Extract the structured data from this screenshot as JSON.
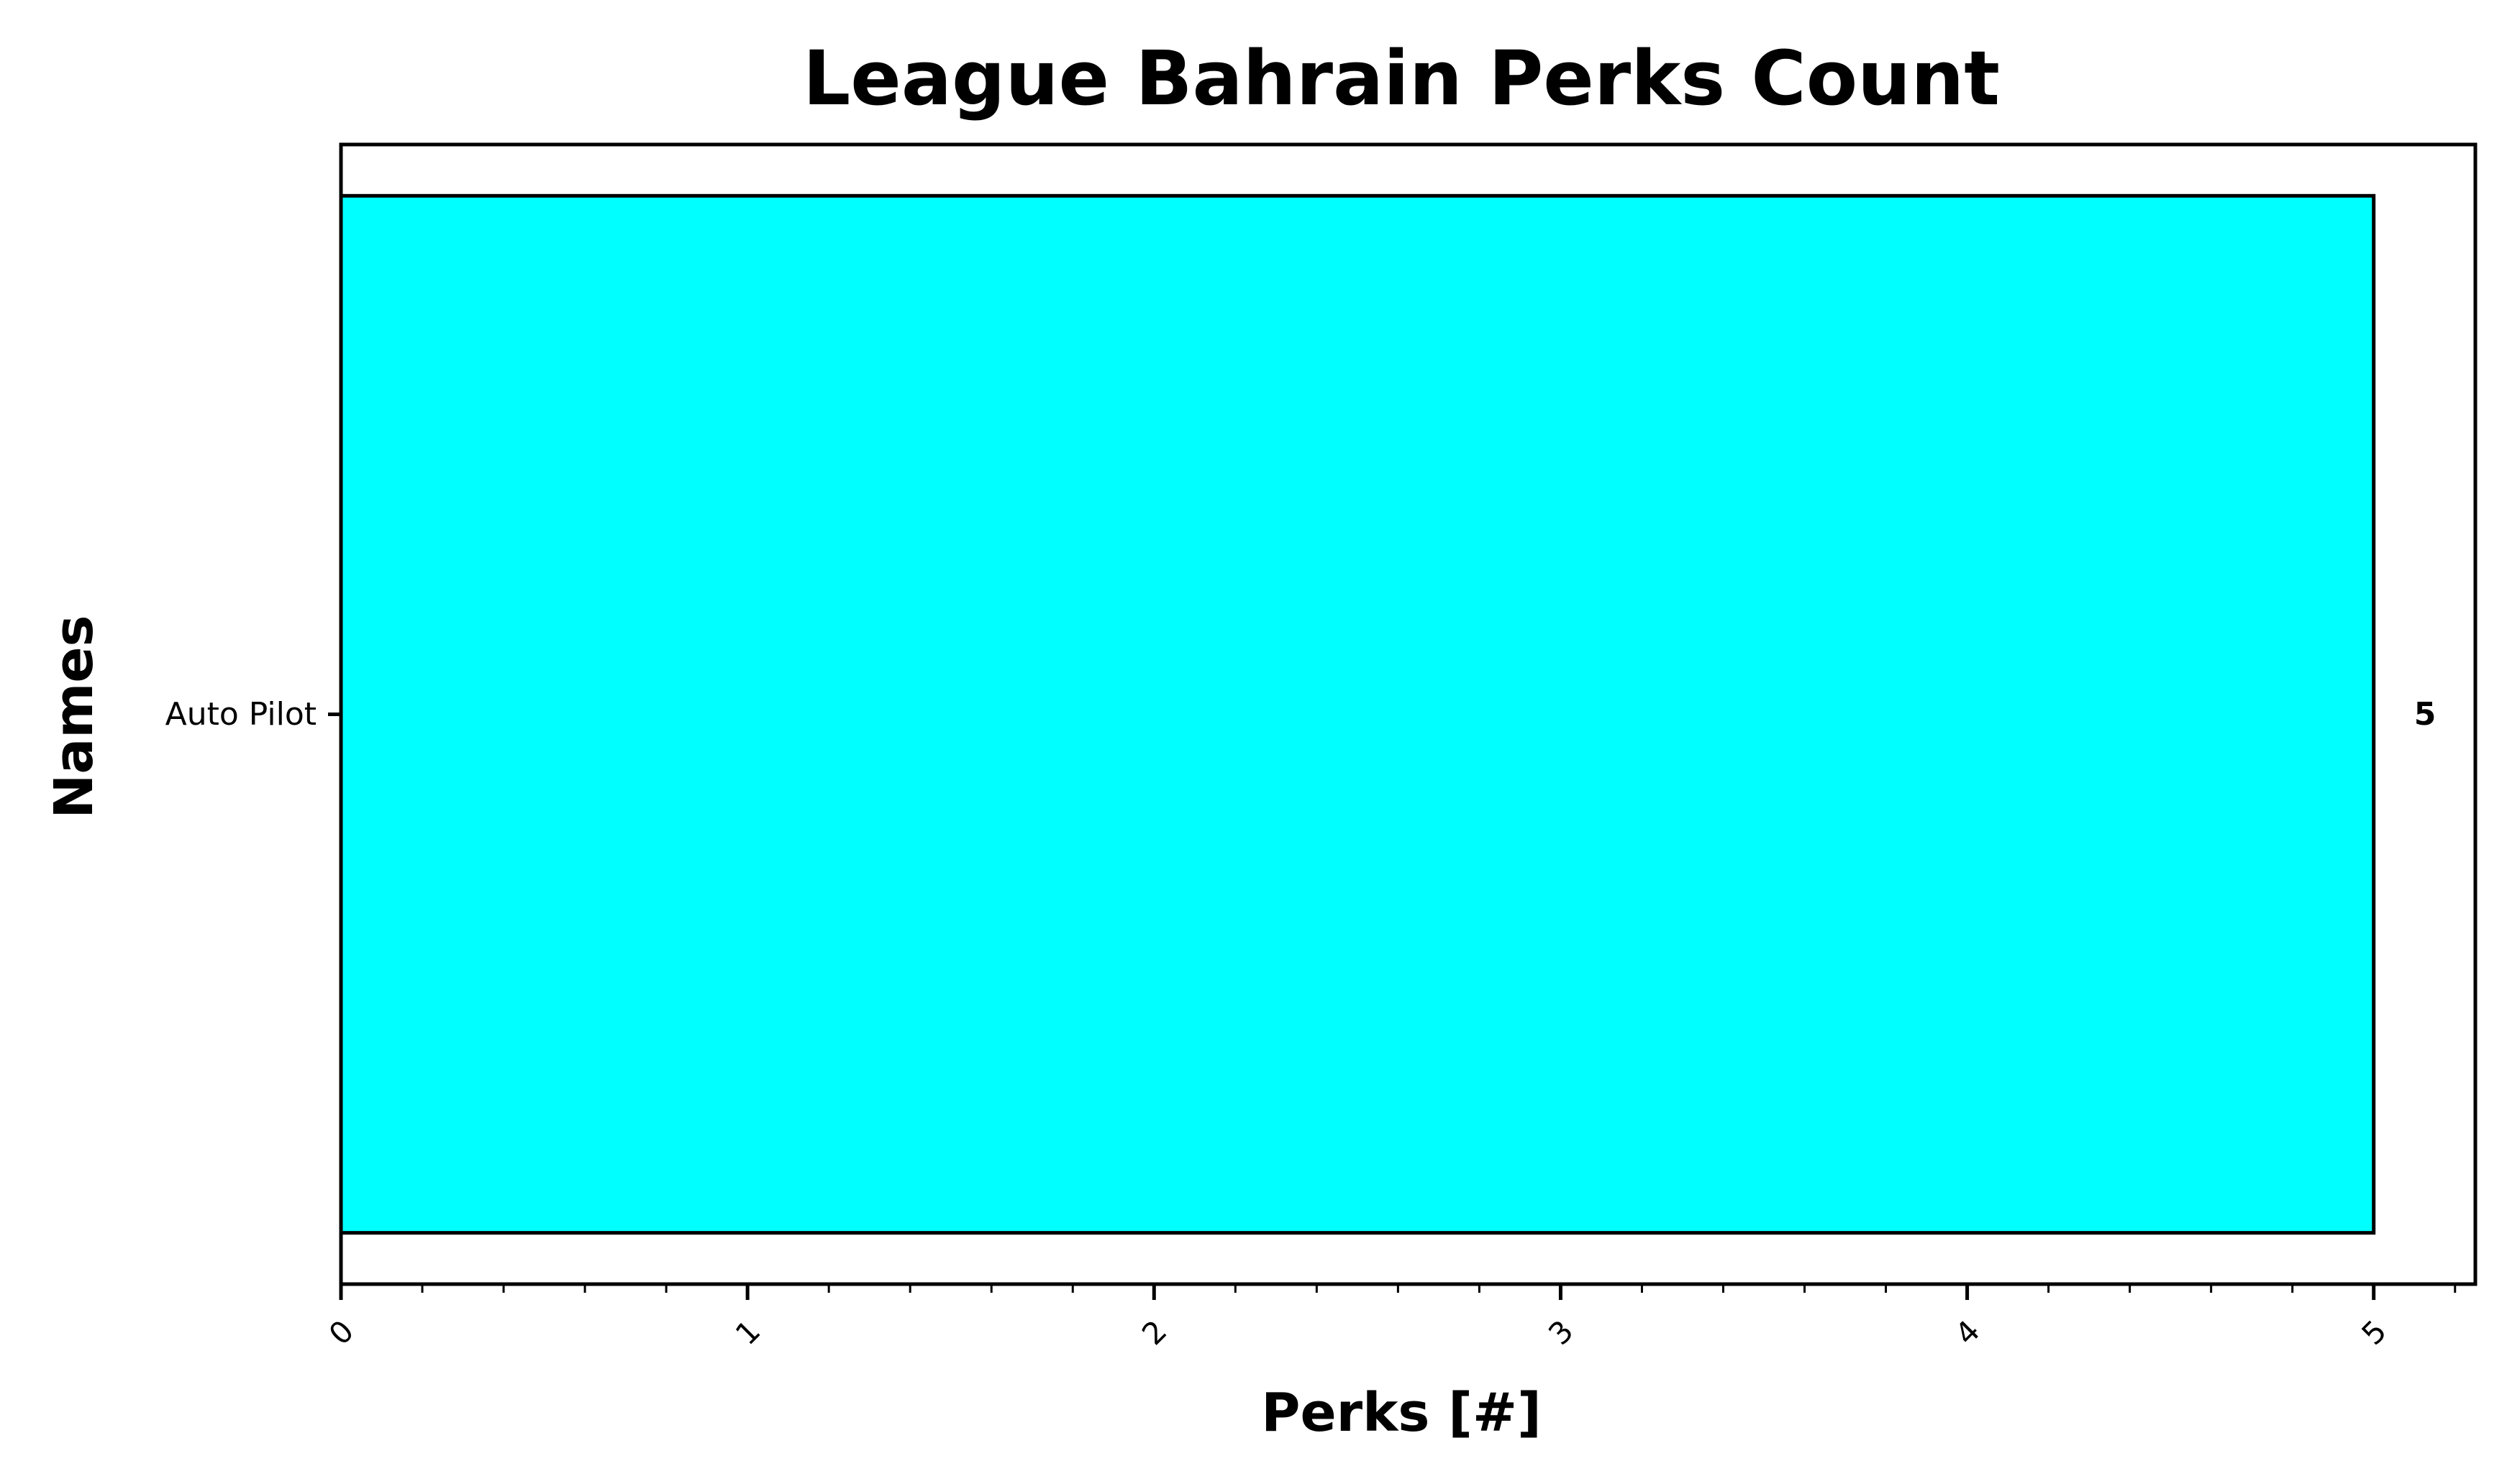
{
  "chart_data": {
    "type": "bar",
    "orientation": "horizontal",
    "title": "League Bahrain Perks Count",
    "xlabel": "Perks [#]",
    "ylabel": "Names",
    "categories": [
      "Auto Pilot"
    ],
    "values": [
      5
    ],
    "data_labels": [
      "5"
    ],
    "xlim": [
      0,
      5.25
    ],
    "xticks": [
      0,
      1,
      2,
      3,
      4,
      5
    ],
    "xtick_labels": [
      "0",
      "1",
      "2",
      "3",
      "4",
      "5"
    ],
    "minor_tick_step": 0.2,
    "grid": false,
    "legend": "none",
    "colors": {
      "bar_fill": "#00FFFF",
      "bar_edge": "#000000",
      "axis": "#000000",
      "background": "#FFFFFF"
    }
  }
}
